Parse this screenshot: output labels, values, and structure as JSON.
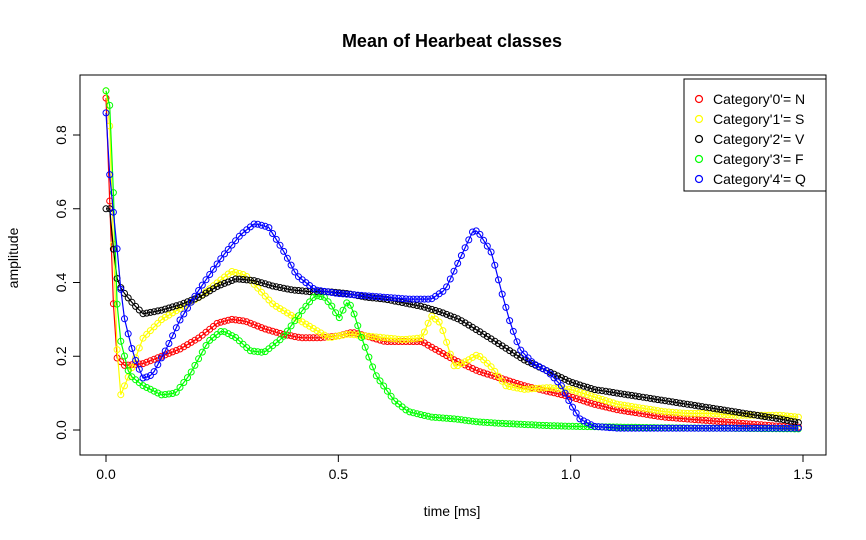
{
  "chart_data": {
    "type": "line",
    "title": "Mean of Hearbeat classes",
    "xlabel": "time [ms]",
    "ylabel": "amplitude",
    "xlim": [
      0,
      1.5
    ],
    "ylim": [
      0,
      0.9
    ],
    "x_ticks": [
      0.0,
      0.5,
      1.0,
      1.5
    ],
    "x_tick_labels": [
      "0.0",
      "0.5",
      "1.0",
      "1.5"
    ],
    "y_ticks": [
      0.0,
      0.2,
      0.4,
      0.6,
      0.8
    ],
    "y_tick_labels": [
      "0.0",
      "0.2",
      "0.4",
      "0.6",
      "0.8"
    ],
    "marker": "open-circle",
    "grid": false,
    "legend_position": "top-right",
    "series": [
      {
        "name": "Category'0'= N",
        "color": "#ff0000",
        "points": [
          [
            0.0,
            0.9
          ],
          [
            0.01,
            0.55
          ],
          [
            0.02,
            0.2
          ],
          [
            0.04,
            0.175
          ],
          [
            0.08,
            0.18
          ],
          [
            0.12,
            0.2
          ],
          [
            0.16,
            0.22
          ],
          [
            0.2,
            0.25
          ],
          [
            0.24,
            0.29
          ],
          [
            0.27,
            0.3
          ],
          [
            0.3,
            0.295
          ],
          [
            0.34,
            0.275
          ],
          [
            0.38,
            0.26
          ],
          [
            0.42,
            0.25
          ],
          [
            0.46,
            0.25
          ],
          [
            0.5,
            0.255
          ],
          [
            0.53,
            0.265
          ],
          [
            0.56,
            0.255
          ],
          [
            0.6,
            0.24
          ],
          [
            0.64,
            0.24
          ],
          [
            0.68,
            0.24
          ],
          [
            0.7,
            0.225
          ],
          [
            0.75,
            0.19
          ],
          [
            0.8,
            0.16
          ],
          [
            0.85,
            0.14
          ],
          [
            0.9,
            0.12
          ],
          [
            0.95,
            0.105
          ],
          [
            1.0,
            0.09
          ],
          [
            1.05,
            0.07
          ],
          [
            1.1,
            0.055
          ],
          [
            1.15,
            0.045
          ],
          [
            1.2,
            0.035
          ],
          [
            1.25,
            0.03
          ],
          [
            1.3,
            0.025
          ],
          [
            1.35,
            0.02
          ],
          [
            1.4,
            0.015
          ],
          [
            1.45,
            0.01
          ],
          [
            1.49,
            0.008
          ]
        ]
      },
      {
        "name": "Category'1'= S",
        "color": "#ffff00",
        "points": [
          [
            0.0,
            0.92
          ],
          [
            0.01,
            0.8
          ],
          [
            0.02,
            0.3
          ],
          [
            0.03,
            0.09
          ],
          [
            0.05,
            0.15
          ],
          [
            0.08,
            0.25
          ],
          [
            0.12,
            0.3
          ],
          [
            0.16,
            0.33
          ],
          [
            0.2,
            0.36
          ],
          [
            0.24,
            0.4
          ],
          [
            0.27,
            0.43
          ],
          [
            0.3,
            0.42
          ],
          [
            0.33,
            0.38
          ],
          [
            0.36,
            0.34
          ],
          [
            0.4,
            0.31
          ],
          [
            0.44,
            0.28
          ],
          [
            0.48,
            0.25
          ],
          [
            0.52,
            0.26
          ],
          [
            0.56,
            0.255
          ],
          [
            0.6,
            0.25
          ],
          [
            0.64,
            0.245
          ],
          [
            0.68,
            0.25
          ],
          [
            0.7,
            0.31
          ],
          [
            0.72,
            0.29
          ],
          [
            0.75,
            0.17
          ],
          [
            0.78,
            0.19
          ],
          [
            0.8,
            0.205
          ],
          [
            0.83,
            0.17
          ],
          [
            0.86,
            0.12
          ],
          [
            0.9,
            0.11
          ],
          [
            0.95,
            0.115
          ],
          [
            1.0,
            0.11
          ],
          [
            1.05,
            0.09
          ],
          [
            1.1,
            0.07
          ],
          [
            1.15,
            0.06
          ],
          [
            1.2,
            0.05
          ],
          [
            1.25,
            0.045
          ],
          [
            1.3,
            0.045
          ],
          [
            1.35,
            0.04
          ],
          [
            1.4,
            0.04
          ],
          [
            1.45,
            0.04
          ],
          [
            1.49,
            0.035
          ]
        ]
      },
      {
        "name": "Category'2'= V",
        "color": "#000000",
        "points": [
          [
            0.0,
            0.6
          ],
          [
            0.01,
            0.6
          ],
          [
            0.015,
            0.5
          ],
          [
            0.025,
            0.4
          ],
          [
            0.04,
            0.37
          ],
          [
            0.06,
            0.34
          ],
          [
            0.08,
            0.315
          ],
          [
            0.12,
            0.325
          ],
          [
            0.16,
            0.34
          ],
          [
            0.2,
            0.36
          ],
          [
            0.24,
            0.39
          ],
          [
            0.28,
            0.41
          ],
          [
            0.32,
            0.405
          ],
          [
            0.36,
            0.39
          ],
          [
            0.4,
            0.38
          ],
          [
            0.44,
            0.375
          ],
          [
            0.48,
            0.375
          ],
          [
            0.52,
            0.37
          ],
          [
            0.56,
            0.36
          ],
          [
            0.6,
            0.355
          ],
          [
            0.64,
            0.345
          ],
          [
            0.68,
            0.335
          ],
          [
            0.72,
            0.32
          ],
          [
            0.76,
            0.3
          ],
          [
            0.8,
            0.27
          ],
          [
            0.85,
            0.23
          ],
          [
            0.9,
            0.19
          ],
          [
            0.95,
            0.16
          ],
          [
            1.0,
            0.13
          ],
          [
            1.05,
            0.11
          ],
          [
            1.1,
            0.1
          ],
          [
            1.15,
            0.09
          ],
          [
            1.2,
            0.08
          ],
          [
            1.25,
            0.07
          ],
          [
            1.3,
            0.06
          ],
          [
            1.35,
            0.05
          ],
          [
            1.4,
            0.04
          ],
          [
            1.45,
            0.03
          ],
          [
            1.49,
            0.02
          ]
        ]
      },
      {
        "name": "Category'3'= F",
        "color": "#00ff00",
        "points": [
          [
            0.0,
            0.92
          ],
          [
            0.01,
            0.87
          ],
          [
            0.015,
            0.7
          ],
          [
            0.02,
            0.4
          ],
          [
            0.03,
            0.25
          ],
          [
            0.05,
            0.15
          ],
          [
            0.08,
            0.12
          ],
          [
            0.12,
            0.095
          ],
          [
            0.15,
            0.1
          ],
          [
            0.18,
            0.15
          ],
          [
            0.22,
            0.24
          ],
          [
            0.25,
            0.27
          ],
          [
            0.28,
            0.25
          ],
          [
            0.31,
            0.215
          ],
          [
            0.34,
            0.21
          ],
          [
            0.38,
            0.25
          ],
          [
            0.42,
            0.32
          ],
          [
            0.45,
            0.365
          ],
          [
            0.47,
            0.36
          ],
          [
            0.49,
            0.33
          ],
          [
            0.5,
            0.3
          ],
          [
            0.52,
            0.35
          ],
          [
            0.53,
            0.33
          ],
          [
            0.55,
            0.25
          ],
          [
            0.58,
            0.15
          ],
          [
            0.62,
            0.08
          ],
          [
            0.65,
            0.05
          ],
          [
            0.7,
            0.035
          ],
          [
            0.75,
            0.03
          ],
          [
            0.8,
            0.022
          ],
          [
            0.85,
            0.018
          ],
          [
            0.9,
            0.015
          ],
          [
            0.95,
            0.012
          ],
          [
            1.0,
            0.01
          ],
          [
            1.1,
            0.008
          ],
          [
            1.2,
            0.006
          ],
          [
            1.3,
            0.005
          ],
          [
            1.4,
            0.004
          ],
          [
            1.49,
            0.003
          ]
        ]
      },
      {
        "name": "Category'4'= Q",
        "color": "#0000ff",
        "points": [
          [
            0.0,
            0.86
          ],
          [
            0.01,
            0.65
          ],
          [
            0.02,
            0.55
          ],
          [
            0.03,
            0.4
          ],
          [
            0.04,
            0.3
          ],
          [
            0.06,
            0.2
          ],
          [
            0.08,
            0.14
          ],
          [
            0.1,
            0.15
          ],
          [
            0.13,
            0.22
          ],
          [
            0.16,
            0.3
          ],
          [
            0.2,
            0.38
          ],
          [
            0.25,
            0.47
          ],
          [
            0.29,
            0.53
          ],
          [
            0.32,
            0.56
          ],
          [
            0.35,
            0.55
          ],
          [
            0.38,
            0.49
          ],
          [
            0.41,
            0.42
          ],
          [
            0.45,
            0.38
          ],
          [
            0.5,
            0.37
          ],
          [
            0.55,
            0.365
          ],
          [
            0.6,
            0.36
          ],
          [
            0.65,
            0.355
          ],
          [
            0.7,
            0.355
          ],
          [
            0.73,
            0.38
          ],
          [
            0.76,
            0.46
          ],
          [
            0.79,
            0.54
          ],
          [
            0.8,
            0.54
          ],
          [
            0.83,
            0.48
          ],
          [
            0.85,
            0.38
          ],
          [
            0.87,
            0.29
          ],
          [
            0.89,
            0.22
          ],
          [
            0.92,
            0.18
          ],
          [
            0.95,
            0.16
          ],
          [
            0.98,
            0.12
          ],
          [
            1.0,
            0.07
          ],
          [
            1.02,
            0.03
          ],
          [
            1.05,
            0.01
          ],
          [
            1.1,
            0.005
          ],
          [
            1.2,
            0.005
          ],
          [
            1.3,
            0.005
          ],
          [
            1.4,
            0.005
          ],
          [
            1.49,
            0.005
          ]
        ]
      }
    ]
  }
}
